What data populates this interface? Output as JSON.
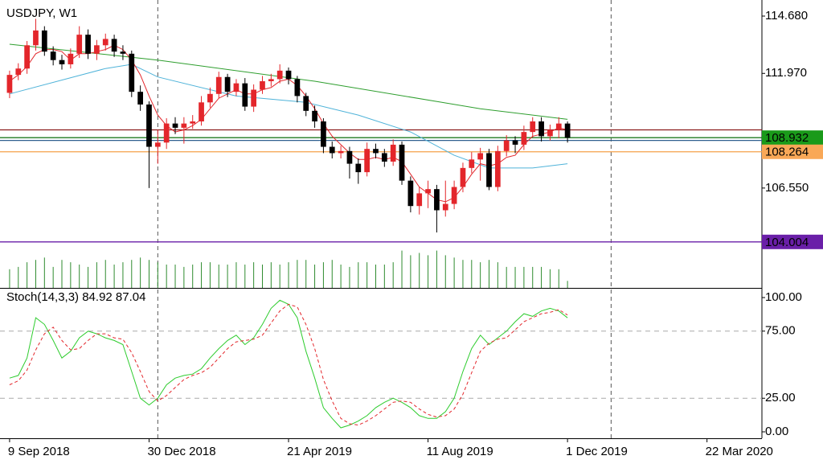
{
  "chart_data": [
    {
      "type": "candlestick",
      "title": "USDJPY, W1",
      "x": [
        0,
        1,
        2,
        3,
        4,
        5,
        6,
        7,
        8,
        9,
        10,
        11,
        12,
        13,
        14,
        15,
        16,
        17,
        18,
        19,
        20,
        21,
        22,
        23,
        24,
        25,
        26,
        27,
        28,
        29,
        30,
        31,
        32,
        33,
        34,
        35,
        36,
        37,
        38,
        39,
        40,
        41,
        42,
        43,
        44,
        45,
        46,
        47,
        48,
        49,
        50,
        51,
        52,
        53,
        54,
        55,
        56,
        57,
        58,
        59,
        60,
        61,
        62,
        63,
        64
      ],
      "open": [
        111.05,
        111.9,
        112.2,
        113.3,
        114.0,
        113.0,
        112.6,
        112.4,
        112.9,
        113.8,
        112.9,
        113.3,
        113.6,
        113.0,
        112.9,
        111.1,
        110.5,
        108.5,
        108.7,
        109.6,
        109.4,
        109.6,
        109.7,
        110.6,
        111.0,
        111.8,
        111.1,
        111.5,
        110.4,
        111.2,
        111.6,
        111.7,
        112.1,
        111.7,
        110.9,
        110.2,
        109.7,
        108.5,
        108.2,
        108.3,
        107.7,
        107.3,
        108.4,
        108.2,
        107.8,
        108.6,
        106.9,
        105.7,
        106.3,
        106.5,
        105.5,
        105.8,
        106.6,
        107.5,
        107.9,
        108.2,
        106.6,
        108.3,
        108.8,
        108.6,
        109.2,
        109.7,
        109.0,
        109.3,
        109.6
      ],
      "high": [
        112.1,
        112.45,
        113.5,
        114.55,
        114.2,
        113.25,
        112.85,
        113.15,
        114.2,
        114.05,
        113.55,
        113.85,
        113.8,
        113.3,
        113.05,
        111.4,
        110.65,
        109.3,
        109.85,
        109.9,
        109.9,
        110.0,
        110.9,
        111.3,
        112.05,
        111.95,
        111.7,
        111.75,
        111.45,
        111.85,
        111.95,
        112.4,
        112.25,
        111.85,
        111.05,
        110.45,
        109.85,
        108.75,
        108.55,
        108.5,
        107.95,
        108.7,
        108.65,
        108.4,
        108.85,
        108.75,
        107.1,
        106.6,
        106.9,
        106.7,
        106.9,
        106.9,
        107.75,
        108.25,
        108.45,
        108.4,
        108.55,
        109.05,
        109.0,
        109.5,
        109.9,
        109.9,
        109.55,
        109.9,
        109.7
      ],
      "low": [
        110.8,
        111.65,
        111.95,
        113.05,
        112.8,
        112.35,
        112.15,
        112.2,
        112.7,
        112.65,
        112.6,
        113.05,
        112.75,
        112.6,
        110.85,
        110.2,
        106.55,
        107.7,
        108.4,
        109.1,
        108.65,
        109.35,
        109.5,
        110.35,
        110.8,
        110.85,
        110.9,
        110.2,
        110.15,
        111.0,
        111.35,
        111.5,
        111.45,
        110.6,
        109.95,
        109.4,
        108.2,
        107.95,
        107.95,
        107.0,
        106.75,
        107.1,
        107.95,
        107.55,
        107.6,
        106.7,
        105.4,
        105.3,
        105.6,
        104.45,
        105.2,
        105.55,
        106.35,
        107.25,
        106.9,
        106.45,
        106.4,
        108.05,
        108.2,
        108.35,
        108.95,
        108.75,
        108.8,
        108.9,
        108.7
      ],
      "close": [
        111.9,
        112.2,
        113.3,
        114.0,
        113.0,
        112.6,
        112.4,
        112.9,
        113.8,
        112.9,
        113.3,
        113.6,
        113.0,
        112.9,
        111.1,
        110.5,
        108.5,
        108.7,
        109.6,
        109.4,
        109.6,
        109.7,
        110.6,
        111.0,
        111.8,
        111.1,
        111.5,
        110.4,
        111.2,
        111.6,
        111.7,
        112.1,
        111.7,
        110.9,
        110.2,
        109.7,
        108.5,
        108.2,
        108.3,
        107.7,
        107.3,
        108.4,
        108.2,
        107.8,
        108.6,
        106.9,
        105.7,
        106.3,
        106.5,
        105.5,
        105.8,
        106.6,
        107.5,
        107.9,
        108.2,
        106.6,
        108.3,
        108.8,
        108.6,
        109.2,
        109.7,
        109.0,
        109.3,
        109.6,
        108.93
      ],
      "up_color": "#e3262b",
      "down_color": "#000000",
      "moving_averages": [
        {
          "color": "#2e9e2e",
          "x": [
            0,
            17,
            35,
            54,
            64
          ],
          "values": [
            113.35,
            112.6,
            111.6,
            110.3,
            109.8
          ]
        },
        {
          "color": "#4fb3d9",
          "x": [
            0,
            11,
            14,
            17,
            26,
            34,
            40,
            46,
            51,
            55,
            60,
            64
          ],
          "values": [
            111.0,
            112.2,
            112.4,
            111.8,
            110.9,
            110.6,
            110.0,
            109.2,
            108.1,
            107.5,
            107.5,
            107.7
          ]
        },
        {
          "color": "#e3262b",
          "x": [
            0,
            1,
            2,
            3,
            4,
            5,
            6,
            7,
            8,
            9,
            10,
            11,
            12,
            13,
            14,
            15,
            16,
            17,
            18,
            19,
            20,
            21,
            22,
            23,
            24,
            25,
            26,
            27,
            28,
            29,
            30,
            31,
            32,
            33,
            34,
            35,
            36,
            37,
            38,
            39,
            40,
            41,
            42,
            43,
            44,
            45,
            46,
            47,
            48,
            49,
            50,
            51,
            52,
            53,
            54,
            55,
            56,
            57,
            58,
            59,
            60,
            61,
            62,
            63,
            64
          ],
          "values": [
            111.6,
            111.9,
            112.3,
            112.9,
            113.1,
            113.1,
            113.0,
            112.6,
            112.9,
            112.9,
            113.0,
            113.1,
            113.3,
            113.1,
            112.6,
            111.9,
            110.9,
            110.0,
            109.5,
            109.2,
            109.3,
            109.5,
            109.8,
            110.3,
            110.8,
            111.0,
            111.2,
            111.0,
            111.0,
            111.2,
            111.3,
            111.6,
            111.7,
            111.4,
            110.9,
            110.3,
            109.6,
            109.0,
            108.6,
            108.2,
            107.9,
            107.9,
            108.0,
            107.9,
            108.0,
            107.8,
            107.2,
            106.6,
            106.3,
            106.0,
            105.9,
            106.1,
            106.6,
            107.2,
            107.7,
            107.6,
            107.7,
            108.0,
            108.1,
            108.6,
            109.0,
            109.1,
            109.2,
            109.4,
            109.3
          ]
        }
      ],
      "volume": [
        40,
        45,
        55,
        60,
        65,
        45,
        60,
        55,
        50,
        45,
        55,
        60,
        50,
        55,
        60,
        65,
        60,
        55,
        50,
        50,
        45,
        50,
        55,
        55,
        50,
        50,
        55,
        50,
        55,
        50,
        55,
        50,
        55,
        60,
        60,
        50,
        55,
        60,
        50,
        45,
        55,
        55,
        50,
        50,
        55,
        80,
        70,
        75,
        70,
        80,
        70,
        65,
        60,
        60,
        55,
        60,
        55,
        45,
        45,
        45,
        45,
        45,
        40,
        40,
        15
      ],
      "volume_ylim": [
        0,
        100
      ],
      "volume_color": "#2e8b2e",
      "hlines": [
        {
          "value": 109.3,
          "color": "#8b1a1a"
        },
        {
          "value": 108.932,
          "color": "#1f7a1f",
          "label_color": "#1a9a1a"
        },
        {
          "value": 108.8,
          "color": "#2f5f8f"
        },
        {
          "value": 108.264,
          "color": "#f5a04a",
          "label_color": "#f9a857"
        },
        {
          "value": 104.004,
          "color": "#6a1fa8",
          "label_color": "#6a1fa8"
        }
      ],
      "separators": [
        17,
        69
      ],
      "xlim": [
        -1.1,
        86.3
      ],
      "ylim": [
        101.83,
        115.44
      ],
      "yticks": [
        {
          "value": 114.68,
          "label": "114.680"
        },
        {
          "value": 111.97,
          "label": "111.970"
        },
        {
          "value": 106.55,
          "label": "106.550"
        }
      ],
      "xticks": [
        {
          "value": 0,
          "label": "9 Sep 2018"
        },
        {
          "value": 16,
          "label": "30 Dec 2018"
        },
        {
          "value": 32,
          "label": "21 Apr 2019"
        },
        {
          "value": 48,
          "label": "11 Aug 2019"
        },
        {
          "value": 64,
          "label": "1 Dec 2019"
        },
        {
          "value": 80,
          "label": "22 Mar 2020"
        }
      ]
    },
    {
      "type": "stochastic",
      "title": "Stoch(14,3,3) 84.92 87.04",
      "series": [
        {
          "color": "#2ecc2e",
          "dash": false,
          "values": [
            40,
            42,
            55,
            85,
            80,
            68,
            55,
            60,
            70,
            75,
            73,
            70,
            68,
            65,
            45,
            25,
            20,
            25,
            35,
            40,
            42,
            43,
            47,
            55,
            62,
            68,
            72,
            65,
            70,
            80,
            92,
            98,
            95,
            85,
            60,
            40,
            18,
            10,
            3,
            5,
            8,
            12,
            18,
            22,
            25,
            22,
            18,
            12,
            10,
            10,
            15,
            25,
            45,
            62,
            72,
            65,
            70,
            75,
            82,
            88,
            86,
            90,
            92,
            90,
            84.92
          ]
        },
        {
          "color": "#e3262b",
          "dash": true,
          "values": [
            35,
            38,
            46,
            61,
            73,
            78,
            68,
            61,
            62,
            68,
            73,
            73,
            70,
            69,
            59,
            45,
            30,
            23,
            27,
            33,
            39,
            42,
            44,
            48,
            55,
            62,
            67,
            68,
            69,
            72,
            81,
            90,
            95,
            93,
            80,
            62,
            39,
            23,
            10,
            6,
            5,
            8,
            12,
            17,
            22,
            23,
            22,
            17,
            13,
            11,
            12,
            17,
            28,
            44,
            60,
            66,
            69,
            70,
            76,
            82,
            85,
            88,
            89,
            91,
            87.04
          ]
        }
      ],
      "ylim": [
        -4.8,
        106
      ],
      "yticks": [
        {
          "value": 100,
          "label": "100.00"
        },
        {
          "value": 75,
          "label": "75.00"
        },
        {
          "value": 25,
          "label": "25.00"
        },
        {
          "value": 0,
          "label": "0.00"
        }
      ]
    }
  ]
}
